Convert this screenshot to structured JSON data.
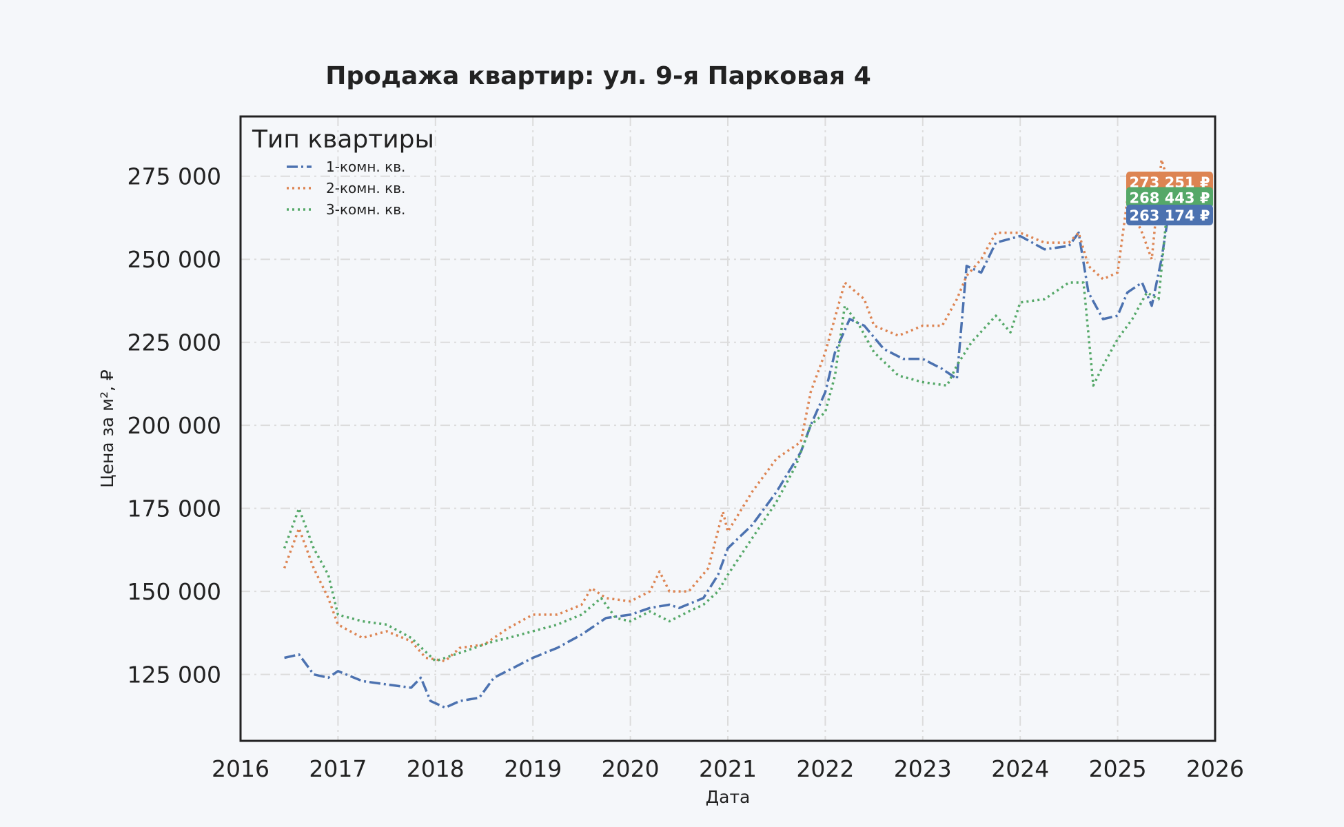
{
  "chart_data": {
    "type": "line",
    "title": "Продажа квартир: ул. 9-я Парковая 4",
    "xlabel": "Дата",
    "ylabel": "Цена за м², ₽",
    "xlim": [
      2016,
      2026
    ],
    "ylim": [
      105000,
      293000
    ],
    "x_ticks": [
      "2016",
      "2017",
      "2018",
      "2019",
      "2020",
      "2021",
      "2022",
      "2023",
      "2024",
      "2025",
      "2026"
    ],
    "y_ticks": [
      {
        "value": 125000,
        "label": "125 000"
      },
      {
        "value": 150000,
        "label": "150 000"
      },
      {
        "value": 175000,
        "label": "175 000"
      },
      {
        "value": 200000,
        "label": "200 000"
      },
      {
        "value": 225000,
        "label": "225 000"
      },
      {
        "value": 250000,
        "label": "250 000"
      },
      {
        "value": 275000,
        "label": "275 000"
      }
    ],
    "grid": true,
    "legend": {
      "title": "Тип квартиры",
      "placement": "top-left"
    },
    "series": [
      {
        "name": "1-комн. кв.",
        "color": "#4c72b0",
        "dash": "dashdot",
        "last_label": "263 174 ₽",
        "last_value": 263174,
        "points": [
          [
            2016.45,
            130000
          ],
          [
            2016.6,
            131000
          ],
          [
            2016.75,
            125000
          ],
          [
            2016.9,
            124000
          ],
          [
            2017.0,
            126000
          ],
          [
            2017.25,
            123000
          ],
          [
            2017.5,
            122000
          ],
          [
            2017.75,
            121000
          ],
          [
            2017.85,
            124000
          ],
          [
            2017.95,
            117000
          ],
          [
            2018.1,
            115000
          ],
          [
            2018.25,
            117000
          ],
          [
            2018.45,
            118000
          ],
          [
            2018.6,
            124000
          ],
          [
            2018.8,
            127000
          ],
          [
            2019.0,
            130000
          ],
          [
            2019.25,
            133000
          ],
          [
            2019.5,
            137000
          ],
          [
            2019.75,
            142000
          ],
          [
            2020.0,
            143000
          ],
          [
            2020.2,
            145000
          ],
          [
            2020.4,
            146000
          ],
          [
            2020.5,
            145000
          ],
          [
            2020.75,
            148000
          ],
          [
            2020.9,
            155000
          ],
          [
            2021.0,
            163000
          ],
          [
            2021.25,
            170000
          ],
          [
            2021.5,
            180000
          ],
          [
            2021.75,
            192000
          ],
          [
            2021.85,
            200000
          ],
          [
            2022.0,
            210000
          ],
          [
            2022.1,
            222000
          ],
          [
            2022.25,
            232000
          ],
          [
            2022.4,
            230000
          ],
          [
            2022.6,
            223000
          ],
          [
            2022.8,
            220000
          ],
          [
            2023.0,
            220000
          ],
          [
            2023.2,
            217000
          ],
          [
            2023.35,
            214000
          ],
          [
            2023.45,
            248000
          ],
          [
            2023.6,
            246000
          ],
          [
            2023.75,
            255000
          ],
          [
            2024.0,
            257000
          ],
          [
            2024.25,
            253000
          ],
          [
            2024.5,
            254000
          ],
          [
            2024.6,
            258000
          ],
          [
            2024.7,
            240000
          ],
          [
            2024.85,
            232000
          ],
          [
            2025.0,
            233000
          ],
          [
            2025.1,
            240000
          ],
          [
            2025.25,
            243000
          ],
          [
            2025.35,
            236000
          ],
          [
            2025.45,
            250000
          ],
          [
            2025.52,
            263174
          ]
        ]
      },
      {
        "name": "2-комн. кв.",
        "color": "#dd8452",
        "dash": "dotted",
        "last_label": "273 251 ₽",
        "last_value": 273251,
        "points": [
          [
            2016.45,
            157000
          ],
          [
            2016.6,
            169000
          ],
          [
            2016.75,
            157000
          ],
          [
            2016.9,
            148000
          ],
          [
            2017.0,
            140000
          ],
          [
            2017.25,
            136000
          ],
          [
            2017.5,
            138000
          ],
          [
            2017.75,
            135000
          ],
          [
            2017.9,
            130000
          ],
          [
            2018.1,
            129000
          ],
          [
            2018.25,
            133000
          ],
          [
            2018.5,
            134000
          ],
          [
            2018.75,
            139000
          ],
          [
            2019.0,
            143000
          ],
          [
            2019.25,
            143000
          ],
          [
            2019.5,
            146000
          ],
          [
            2019.6,
            151000
          ],
          [
            2019.75,
            148000
          ],
          [
            2020.0,
            147000
          ],
          [
            2020.2,
            150000
          ],
          [
            2020.3,
            156000
          ],
          [
            2020.4,
            150000
          ],
          [
            2020.6,
            150000
          ],
          [
            2020.8,
            157000
          ],
          [
            2020.95,
            174000
          ],
          [
            2021.0,
            168000
          ],
          [
            2021.25,
            180000
          ],
          [
            2021.5,
            190000
          ],
          [
            2021.75,
            195000
          ],
          [
            2021.85,
            210000
          ],
          [
            2022.0,
            222000
          ],
          [
            2022.2,
            243000
          ],
          [
            2022.4,
            238000
          ],
          [
            2022.5,
            230000
          ],
          [
            2022.75,
            227000
          ],
          [
            2023.0,
            230000
          ],
          [
            2023.2,
            230000
          ],
          [
            2023.35,
            238000
          ],
          [
            2023.45,
            245000
          ],
          [
            2023.6,
            250000
          ],
          [
            2023.75,
            258000
          ],
          [
            2024.0,
            258000
          ],
          [
            2024.25,
            255000
          ],
          [
            2024.5,
            255000
          ],
          [
            2024.6,
            258000
          ],
          [
            2024.7,
            248000
          ],
          [
            2024.85,
            244000
          ],
          [
            2025.0,
            246000
          ],
          [
            2025.1,
            268000
          ],
          [
            2025.25,
            258000
          ],
          [
            2025.35,
            250000
          ],
          [
            2025.45,
            280000
          ],
          [
            2025.52,
            273251
          ]
        ]
      },
      {
        "name": "3-комн. кв.",
        "color": "#55a868",
        "dash": "dotted",
        "last_label": "268 443 ₽",
        "last_value": 268443,
        "points": [
          [
            2016.45,
            163000
          ],
          [
            2016.6,
            175000
          ],
          [
            2016.75,
            163000
          ],
          [
            2016.9,
            155000
          ],
          [
            2017.0,
            143000
          ],
          [
            2017.25,
            141000
          ],
          [
            2017.5,
            140000
          ],
          [
            2017.75,
            136000
          ],
          [
            2018.0,
            129000
          ],
          [
            2018.2,
            131000
          ],
          [
            2018.4,
            133000
          ],
          [
            2018.6,
            135000
          ],
          [
            2018.75,
            136000
          ],
          [
            2019.0,
            138000
          ],
          [
            2019.25,
            140000
          ],
          [
            2019.5,
            143000
          ],
          [
            2019.7,
            148000
          ],
          [
            2019.85,
            142000
          ],
          [
            2020.0,
            141000
          ],
          [
            2020.2,
            144000
          ],
          [
            2020.4,
            141000
          ],
          [
            2020.6,
            144000
          ],
          [
            2020.75,
            146000
          ],
          [
            2020.9,
            150000
          ],
          [
            2021.0,
            155000
          ],
          [
            2021.25,
            166000
          ],
          [
            2021.5,
            177000
          ],
          [
            2021.7,
            188000
          ],
          [
            2021.85,
            200000
          ],
          [
            2022.0,
            204000
          ],
          [
            2022.1,
            215000
          ],
          [
            2022.2,
            236000
          ],
          [
            2022.35,
            230000
          ],
          [
            2022.5,
            222000
          ],
          [
            2022.75,
            215000
          ],
          [
            2023.0,
            213000
          ],
          [
            2023.25,
            212000
          ],
          [
            2023.35,
            218000
          ],
          [
            2023.5,
            225000
          ],
          [
            2023.75,
            233000
          ],
          [
            2023.9,
            228000
          ],
          [
            2024.0,
            237000
          ],
          [
            2024.25,
            238000
          ],
          [
            2024.5,
            243000
          ],
          [
            2024.65,
            243000
          ],
          [
            2024.75,
            212000
          ],
          [
            2024.85,
            218000
          ],
          [
            2025.0,
            226000
          ],
          [
            2025.15,
            232000
          ],
          [
            2025.3,
            240000
          ],
          [
            2025.42,
            238000
          ],
          [
            2025.52,
            268443
          ]
        ]
      }
    ]
  }
}
